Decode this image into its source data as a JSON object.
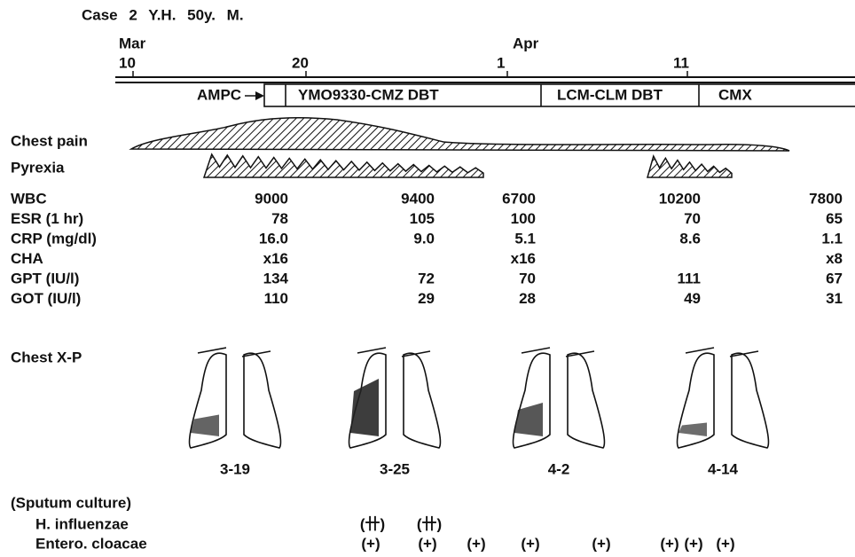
{
  "header": {
    "title": "Case 2 Y.H. 50y. M."
  },
  "timeline": {
    "months": [
      "Mar",
      "Apr"
    ],
    "days": [
      "10",
      "20",
      "1",
      "11"
    ]
  },
  "therapy": [
    "AMPC",
    "YMO9330-CMZ DBT",
    "LCM-CLM DBT",
    "CMX"
  ],
  "symptoms": [
    "Chest pain",
    "Pyrexia"
  ],
  "labs": {
    "rows": [
      {
        "label": "WBC",
        "values": [
          "9000",
          "9400",
          "6700",
          "10200",
          "7800"
        ]
      },
      {
        "label": "ESR (1 hr)",
        "values": [
          "78",
          "105",
          "100",
          "70",
          "65"
        ]
      },
      {
        "label": "CRP (mg/dl)",
        "values": [
          "16.0",
          "9.0",
          "5.1",
          "8.6",
          "1.1"
        ]
      },
      {
        "label": "CHA",
        "values": [
          "x16",
          null,
          "x16",
          null,
          "x8"
        ]
      },
      {
        "label": "GPT (IU/l)",
        "values": [
          "134",
          "72",
          "70",
          "111",
          "67"
        ]
      },
      {
        "label": "GOT (IU/l)",
        "values": [
          "110",
          "29",
          "28",
          "49",
          "31"
        ]
      }
    ]
  },
  "xray": {
    "label": "Chest X-P",
    "dates": [
      "3-19",
      "3-25",
      "4-2",
      "4-14"
    ]
  },
  "sputum": {
    "title": "(Sputum culture)",
    "rows": [
      {
        "label": "H. influenzae",
        "results": [
          "(卄)",
          "(卄)"
        ]
      },
      {
        "label": "Entero. cloacae",
        "results": [
          "(+)",
          "(+)",
          "(+)",
          "(+)",
          "(+)",
          "(+)",
          "(+)",
          "(+)"
        ]
      }
    ]
  }
}
